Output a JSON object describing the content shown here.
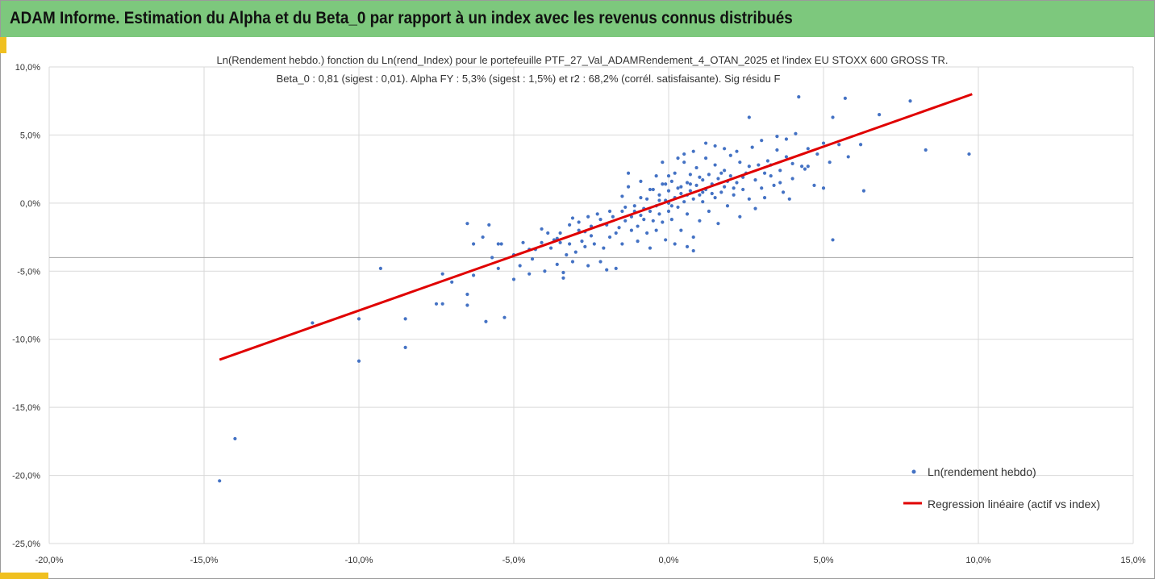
{
  "header": {
    "title": "ADAM Informe. Estimation du Alpha et du Beta_0 par rapport à un index avec les revenus connus distribués"
  },
  "colors": {
    "header_bg": "#7dc87d",
    "accent": "#f0c020",
    "scatter": "#4472c4",
    "regression": "#e00000",
    "grid": "#d9d9d9"
  },
  "chart_data": {
    "type": "scatter",
    "title": "Ln(Rendement hebdo.) fonction du Ln(rend_Index) pour le portefeuille PTF_27_Val_ADAMRendement_4_OTAN_2025 et l'index EU STOXX 600 GROSS TR.",
    "subtitle": "Beta_0 : 0,81 (sigest : 0,01). Alpha FY : 5,3% (sigest : 1,5%) et r2 : 68,2% (corrél. satisfaisante). Sig résidu F",
    "xlim": [
      -0.2,
      0.15
    ],
    "ylim": [
      -0.25,
      0.1
    ],
    "x_ticks": [
      -0.2,
      -0.15,
      -0.1,
      -0.05,
      0.0,
      0.05,
      0.1,
      0.15
    ],
    "x_tick_labels": [
      "-20,0%",
      "-15,0%",
      "-10,0%",
      "-5,0%",
      "0,0%",
      "5,0%",
      "10,0%",
      "15,0%"
    ],
    "y_ticks": [
      0.1,
      0.05,
      0.0,
      -0.05,
      -0.1,
      -0.15,
      -0.2,
      -0.25
    ],
    "y_tick_labels": [
      "10,0%",
      "5,0%",
      "0,0%",
      "-5,0%",
      "-10,0%",
      "-15,0%",
      "-20,0%",
      "-25,0%"
    ],
    "grid": true,
    "reference_line_y": -0.04,
    "legend_position": "bottom-right",
    "series": [
      {
        "name": "Ln(rendement hebdo)",
        "kind": "scatter",
        "color": "#4472c4",
        "points": [
          [
            -0.145,
            -0.204
          ],
          [
            -0.14,
            -0.173
          ],
          [
            -0.115,
            -0.088
          ],
          [
            -0.1,
            -0.116
          ],
          [
            -0.1,
            -0.085
          ],
          [
            -0.093,
            -0.048
          ],
          [
            -0.085,
            -0.106
          ],
          [
            -0.085,
            -0.085
          ],
          [
            -0.075,
            -0.074
          ],
          [
            -0.073,
            -0.074
          ],
          [
            -0.073,
            -0.052
          ],
          [
            -0.07,
            -0.058
          ],
          [
            -0.065,
            -0.075
          ],
          [
            -0.065,
            -0.067
          ],
          [
            -0.065,
            -0.015
          ],
          [
            -0.063,
            -0.03
          ],
          [
            -0.063,
            -0.053
          ],
          [
            -0.059,
            -0.087
          ],
          [
            -0.058,
            -0.016
          ],
          [
            -0.06,
            -0.025
          ],
          [
            -0.057,
            -0.04
          ],
          [
            -0.055,
            -0.03
          ],
          [
            -0.055,
            -0.048
          ],
          [
            -0.054,
            -0.03
          ],
          [
            -0.053,
            -0.084
          ],
          [
            -0.05,
            -0.056
          ],
          [
            -0.05,
            -0.038
          ],
          [
            -0.048,
            -0.046
          ],
          [
            -0.047,
            -0.029
          ],
          [
            -0.045,
            -0.034
          ],
          [
            -0.045,
            -0.052
          ],
          [
            -0.044,
            -0.041
          ],
          [
            -0.043,
            -0.034
          ],
          [
            -0.041,
            -0.019
          ],
          [
            -0.04,
            -0.05
          ],
          [
            -0.038,
            -0.033
          ],
          [
            -0.037,
            -0.027
          ],
          [
            -0.036,
            -0.045
          ],
          [
            -0.036,
            -0.026
          ],
          [
            -0.035,
            -0.022
          ],
          [
            -0.034,
            -0.051
          ],
          [
            -0.034,
            -0.055
          ],
          [
            -0.033,
            -0.038
          ],
          [
            -0.032,
            -0.03
          ],
          [
            -0.031,
            -0.043
          ],
          [
            -0.031,
            -0.011
          ],
          [
            -0.03,
            -0.036
          ],
          [
            -0.029,
            -0.014
          ],
          [
            -0.028,
            -0.028
          ],
          [
            -0.027,
            -0.021
          ],
          [
            -0.027,
            -0.032
          ],
          [
            -0.026,
            -0.046
          ],
          [
            -0.025,
            -0.017
          ],
          [
            -0.025,
            -0.024
          ],
          [
            -0.024,
            -0.03
          ],
          [
            -0.023,
            -0.008
          ],
          [
            -0.022,
            -0.043
          ],
          [
            -0.021,
            -0.033
          ],
          [
            -0.02,
            -0.016
          ],
          [
            -0.02,
            -0.049
          ],
          [
            -0.019,
            -0.025
          ],
          [
            -0.018,
            -0.01
          ],
          [
            -0.017,
            -0.022
          ],
          [
            -0.017,
            -0.048
          ],
          [
            -0.016,
            -0.018
          ],
          [
            -0.015,
            -0.006
          ],
          [
            -0.015,
            -0.03
          ],
          [
            -0.014,
            -0.013
          ],
          [
            -0.013,
            0.022
          ],
          [
            -0.012,
            -0.02
          ],
          [
            -0.012,
            -0.01
          ],
          [
            -0.011,
            -0.002
          ],
          [
            -0.01,
            -0.028
          ],
          [
            -0.01,
            -0.017
          ],
          [
            -0.009,
            0.004
          ],
          [
            -0.009,
            -0.009
          ],
          [
            -0.008,
            -0.012
          ],
          [
            -0.007,
            -0.022
          ],
          [
            -0.007,
            0.003
          ],
          [
            -0.006,
            -0.006
          ],
          [
            -0.006,
            -0.033
          ],
          [
            -0.005,
            -0.013
          ],
          [
            -0.005,
            0.01
          ],
          [
            -0.004,
            -0.002
          ],
          [
            -0.004,
            -0.02
          ],
          [
            -0.003,
            0.006
          ],
          [
            -0.003,
            -0.008
          ],
          [
            -0.002,
            0.014
          ],
          [
            -0.002,
            -0.014
          ],
          [
            -0.001,
            0.002
          ],
          [
            -0.001,
            -0.027
          ],
          [
            0.0,
            0.0
          ],
          [
            0.0,
            0.009
          ],
          [
            0.0,
            -0.006
          ],
          [
            0.001,
            0.016
          ],
          [
            0.001,
            -0.012
          ],
          [
            0.002,
            0.004
          ],
          [
            0.002,
            0.022
          ],
          [
            0.003,
            -0.003
          ],
          [
            0.003,
            0.011
          ],
          [
            0.004,
            -0.02
          ],
          [
            0.004,
            0.007
          ],
          [
            0.005,
            0.03
          ],
          [
            0.005,
            0.001
          ],
          [
            0.006,
            0.015
          ],
          [
            0.006,
            -0.008
          ],
          [
            0.007,
            0.009
          ],
          [
            0.007,
            0.021
          ],
          [
            0.008,
            0.003
          ],
          [
            0.008,
            -0.025
          ],
          [
            0.009,
            0.013
          ],
          [
            0.009,
            0.026
          ],
          [
            0.01,
            0.006
          ],
          [
            0.01,
            -0.013
          ],
          [
            0.011,
            0.017
          ],
          [
            0.011,
            0.001
          ],
          [
            0.012,
            0.033
          ],
          [
            0.012,
            0.01
          ],
          [
            0.013,
            -0.006
          ],
          [
            0.013,
            0.021
          ],
          [
            0.014,
            0.014
          ],
          [
            0.015,
            0.004
          ],
          [
            0.015,
            0.028
          ],
          [
            0.016,
            0.018
          ],
          [
            0.016,
            -0.015
          ],
          [
            0.017,
            0.008
          ],
          [
            0.018,
            0.024
          ],
          [
            0.018,
            0.012
          ],
          [
            0.019,
            -0.002
          ],
          [
            0.02,
            0.02
          ],
          [
            0.02,
            0.035
          ],
          [
            0.021,
            0.006
          ],
          [
            0.022,
            0.015
          ],
          [
            0.023,
            0.03
          ],
          [
            0.023,
            -0.01
          ],
          [
            0.024,
            0.01
          ],
          [
            0.025,
            0.022
          ],
          [
            0.026,
            0.003
          ],
          [
            0.027,
            0.041
          ],
          [
            0.028,
            0.017
          ],
          [
            0.029,
            0.028
          ],
          [
            0.03,
            0.011
          ],
          [
            0.031,
            0.004
          ],
          [
            0.032,
            0.031
          ],
          [
            0.033,
            0.02
          ],
          [
            0.034,
            0.013
          ],
          [
            0.035,
            0.039
          ],
          [
            0.036,
            0.024
          ],
          [
            0.037,
            0.008
          ],
          [
            0.038,
            0.034
          ],
          [
            0.04,
            0.018
          ],
          [
            0.041,
            0.051
          ],
          [
            0.042,
            0.078
          ],
          [
            0.043,
            0.027
          ],
          [
            0.045,
            0.04
          ],
          [
            0.047,
            0.013
          ],
          [
            0.048,
            0.036
          ],
          [
            0.05,
            0.011
          ],
          [
            0.05,
            0.044
          ],
          [
            0.052,
            0.03
          ],
          [
            0.053,
            0.063
          ],
          [
            0.053,
            -0.027
          ],
          [
            0.055,
            0.043
          ],
          [
            0.057,
            0.077
          ],
          [
            0.058,
            0.034
          ],
          [
            0.062,
            0.043
          ],
          [
            0.063,
            0.009
          ],
          [
            0.068,
            0.065
          ],
          [
            0.078,
            0.075
          ],
          [
            0.083,
            0.039
          ],
          [
            0.097,
            0.036
          ],
          [
            0.026,
            0.063
          ],
          [
            0.03,
            0.046
          ],
          [
            0.035,
            0.049
          ],
          [
            0.038,
            0.047
          ],
          [
            0.022,
            0.038
          ],
          [
            0.018,
            0.04
          ],
          [
            0.012,
            0.044
          ],
          [
            0.008,
            0.038
          ],
          [
            -0.002,
            0.03
          ],
          [
            0.005,
            0.036
          ],
          [
            0.003,
            0.033
          ],
          [
            0.015,
            0.042
          ],
          [
            0.045,
            0.027
          ],
          [
            0.044,
            0.025
          ],
          [
            0.039,
            0.003
          ],
          [
            0.028,
            -0.004
          ],
          [
            0.008,
            -0.035
          ],
          [
            0.002,
            -0.03
          ],
          [
            0.006,
            -0.032
          ],
          [
            -0.001,
            0.014
          ],
          [
            0.0,
            0.02
          ],
          [
            0.001,
            -0.002
          ],
          [
            0.007,
            0.014
          ],
          [
            0.01,
            0.019
          ],
          [
            0.014,
            0.007
          ],
          [
            0.017,
            0.022
          ],
          [
            0.019,
            0.016
          ],
          [
            0.021,
            0.011
          ],
          [
            0.024,
            0.019
          ],
          [
            0.011,
            0.008
          ],
          [
            0.006,
            0.006
          ],
          [
            0.004,
            0.012
          ],
          [
            -0.003,
            0.002
          ],
          [
            -0.008,
            -0.004
          ],
          [
            -0.011,
            -0.006
          ],
          [
            -0.014,
            -0.003
          ],
          [
            -0.019,
            -0.006
          ],
          [
            -0.022,
            -0.012
          ],
          [
            -0.026,
            -0.01
          ],
          [
            -0.029,
            -0.02
          ],
          [
            -0.032,
            -0.016
          ],
          [
            -0.035,
            -0.029
          ],
          [
            -0.039,
            -0.022
          ],
          [
            -0.041,
            -0.029
          ],
          [
            -0.015,
            0.005
          ],
          [
            -0.013,
            0.012
          ],
          [
            -0.009,
            0.016
          ],
          [
            -0.006,
            0.01
          ],
          [
            -0.004,
            0.02
          ],
          [
            0.026,
            0.027
          ],
          [
            0.031,
            0.022
          ],
          [
            0.033,
            0.028
          ],
          [
            0.036,
            0.015
          ],
          [
            0.04,
            0.029
          ]
        ]
      },
      {
        "name": "Regression linéaire (actif vs index)",
        "kind": "line",
        "color": "#e00000",
        "x": [
          -0.145,
          0.098
        ],
        "y": [
          -0.115,
          0.08
        ]
      }
    ]
  }
}
